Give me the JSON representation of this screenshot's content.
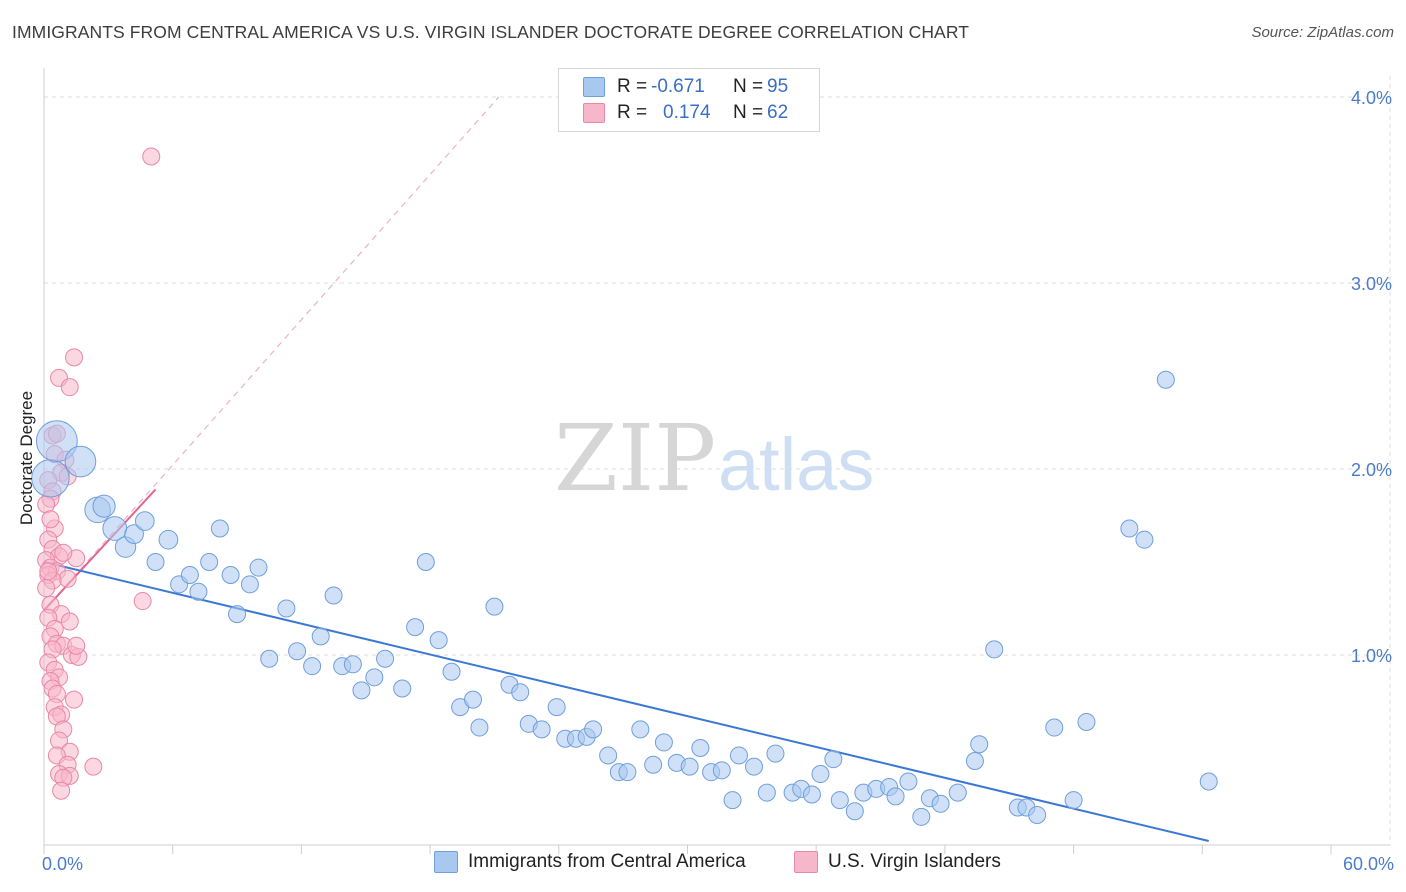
{
  "title": "IMMIGRANTS FROM CENTRAL AMERICA VS U.S. VIRGIN ISLANDER DOCTORATE DEGREE CORRELATION CHART",
  "source": "Source: ZipAtlas.com",
  "watermark": {
    "zip": "ZIP",
    "atlas": "atlas"
  },
  "legend": {
    "rows": [
      {
        "r_label": "R =",
        "r_value": "-0.671",
        "n_label": "N =",
        "n_value": "95"
      },
      {
        "r_label": "R =",
        "r_value": "0.174",
        "n_label": "N =",
        "n_value": "62"
      }
    ]
  },
  "bottom_legend": {
    "series1": "Immigrants from Central America",
    "series2": "U.S. Virgin Islanders"
  },
  "colors": {
    "blue_fill": "#a9c8f0",
    "blue_stroke": "#6f9fdc",
    "blue_line": "#3a78d4",
    "pink_fill": "#f7b7ca",
    "pink_stroke": "#ea88a8",
    "pink_line": "#e5648f",
    "grid": "#dcdcdc",
    "tick_label": "#4a7cc9"
  },
  "chart_data": {
    "type": "scatter",
    "title": "IMMIGRANTS FROM CENTRAL AMERICA VS U.S. VIRGIN ISLANDER DOCTORATE DEGREE CORRELATION CHART",
    "xlabel": "",
    "ylabel": "Doctorate Degree",
    "xlim": [
      0,
      60
    ],
    "ylim": [
      0,
      4.2
    ],
    "x_tick_labels": [
      "0.0%",
      "60.0%"
    ],
    "y_ticks": [
      1,
      2,
      3,
      4
    ],
    "y_tick_labels": [
      "1.0%",
      "2.0%",
      "3.0%",
      "4.0%"
    ],
    "grid": true,
    "legend_position": "top-center",
    "series": [
      {
        "name": "Immigrants from Central America",
        "color": "#a9c8f0",
        "R": -0.671,
        "N": 95,
        "trend": {
          "x": [
            0,
            54.3
          ],
          "y": [
            1.5,
            0.0
          ]
        },
        "points": [
          {
            "x": 0.3,
            "y": 1.95,
            "s": 2.2
          },
          {
            "x": 0.6,
            "y": 2.15,
            "s": 2.4
          },
          {
            "x": 1.7,
            "y": 2.04,
            "s": 1.8
          },
          {
            "x": 2.5,
            "y": 1.78,
            "s": 1.5
          },
          {
            "x": 2.8,
            "y": 1.8,
            "s": 1.3
          },
          {
            "x": 3.3,
            "y": 1.68,
            "s": 1.4
          },
          {
            "x": 3.8,
            "y": 1.58,
            "s": 1.2
          },
          {
            "x": 4.2,
            "y": 1.65,
            "s": 1.1
          },
          {
            "x": 4.7,
            "y": 1.72,
            "s": 1.1
          },
          {
            "x": 5.2,
            "y": 1.5,
            "s": 1.0
          },
          {
            "x": 5.8,
            "y": 1.62,
            "s": 1.1
          },
          {
            "x": 6.3,
            "y": 1.38,
            "s": 1.0
          },
          {
            "x": 6.8,
            "y": 1.43,
            "s": 1.0
          },
          {
            "x": 7.2,
            "y": 1.34,
            "s": 1.0
          },
          {
            "x": 7.7,
            "y": 1.5,
            "s": 1.0
          },
          {
            "x": 8.2,
            "y": 1.68,
            "s": 1.0
          },
          {
            "x": 8.7,
            "y": 1.43,
            "s": 1.0
          },
          {
            "x": 9.0,
            "y": 1.22,
            "s": 1.0
          },
          {
            "x": 9.6,
            "y": 1.38,
            "s": 1.0
          },
          {
            "x": 10.0,
            "y": 1.47,
            "s": 1.0
          },
          {
            "x": 10.5,
            "y": 0.98,
            "s": 1.0
          },
          {
            "x": 11.3,
            "y": 1.25,
            "s": 1.0
          },
          {
            "x": 11.8,
            "y": 1.02,
            "s": 1.0
          },
          {
            "x": 12.5,
            "y": 0.94,
            "s": 1.0
          },
          {
            "x": 12.9,
            "y": 1.1,
            "s": 1.0
          },
          {
            "x": 13.5,
            "y": 1.32,
            "s": 1.0
          },
          {
            "x": 13.9,
            "y": 0.94,
            "s": 1.0
          },
          {
            "x": 14.4,
            "y": 0.95,
            "s": 1.0
          },
          {
            "x": 14.8,
            "y": 0.81,
            "s": 1.0
          },
          {
            "x": 15.4,
            "y": 0.88,
            "s": 1.0
          },
          {
            "x": 15.9,
            "y": 0.98,
            "s": 1.0
          },
          {
            "x": 16.7,
            "y": 0.82,
            "s": 1.0
          },
          {
            "x": 17.3,
            "y": 1.15,
            "s": 1.0
          },
          {
            "x": 17.8,
            "y": 1.5,
            "s": 1.0
          },
          {
            "x": 18.4,
            "y": 1.08,
            "s": 1.0
          },
          {
            "x": 19.0,
            "y": 0.91,
            "s": 1.0
          },
          {
            "x": 19.4,
            "y": 0.72,
            "s": 1.0
          },
          {
            "x": 20.0,
            "y": 0.76,
            "s": 1.0
          },
          {
            "x": 20.3,
            "y": 0.61,
            "s": 1.0
          },
          {
            "x": 21.0,
            "y": 1.26,
            "s": 1.0
          },
          {
            "x": 21.7,
            "y": 0.84,
            "s": 1.0
          },
          {
            "x": 22.2,
            "y": 0.8,
            "s": 1.0
          },
          {
            "x": 22.6,
            "y": 0.63,
            "s": 1.0
          },
          {
            "x": 23.2,
            "y": 0.6,
            "s": 1.0
          },
          {
            "x": 23.9,
            "y": 0.72,
            "s": 1.0
          },
          {
            "x": 24.3,
            "y": 0.55,
            "s": 1.0
          },
          {
            "x": 24.8,
            "y": 0.55,
            "s": 1.0
          },
          {
            "x": 25.3,
            "y": 0.56,
            "s": 1.0
          },
          {
            "x": 25.6,
            "y": 0.6,
            "s": 1.0
          },
          {
            "x": 26.3,
            "y": 0.46,
            "s": 1.0
          },
          {
            "x": 26.8,
            "y": 0.37,
            "s": 1.0
          },
          {
            "x": 27.2,
            "y": 0.37,
            "s": 1.0
          },
          {
            "x": 27.8,
            "y": 0.6,
            "s": 1.0
          },
          {
            "x": 28.4,
            "y": 0.41,
            "s": 1.0
          },
          {
            "x": 28.9,
            "y": 0.53,
            "s": 1.0
          },
          {
            "x": 29.5,
            "y": 0.42,
            "s": 1.0
          },
          {
            "x": 30.1,
            "y": 0.4,
            "s": 1.0
          },
          {
            "x": 30.6,
            "y": 0.5,
            "s": 1.0
          },
          {
            "x": 31.1,
            "y": 0.37,
            "s": 1.0
          },
          {
            "x": 31.6,
            "y": 0.38,
            "s": 1.0
          },
          {
            "x": 32.1,
            "y": 0.22,
            "s": 1.0
          },
          {
            "x": 32.4,
            "y": 0.46,
            "s": 1.0
          },
          {
            "x": 33.1,
            "y": 0.4,
            "s": 1.0
          },
          {
            "x": 33.7,
            "y": 0.26,
            "s": 1.0
          },
          {
            "x": 34.1,
            "y": 0.47,
            "s": 1.0
          },
          {
            "x": 34.9,
            "y": 0.26,
            "s": 1.0
          },
          {
            "x": 35.3,
            "y": 0.28,
            "s": 1.0
          },
          {
            "x": 35.8,
            "y": 0.25,
            "s": 1.0
          },
          {
            "x": 36.2,
            "y": 0.36,
            "s": 1.0
          },
          {
            "x": 36.8,
            "y": 0.44,
            "s": 1.0
          },
          {
            "x": 37.1,
            "y": 0.22,
            "s": 1.0
          },
          {
            "x": 37.8,
            "y": 0.16,
            "s": 1.0
          },
          {
            "x": 38.2,
            "y": 0.26,
            "s": 1.0
          },
          {
            "x": 38.8,
            "y": 0.28,
            "s": 1.0
          },
          {
            "x": 39.4,
            "y": 0.29,
            "s": 1.0
          },
          {
            "x": 39.7,
            "y": 0.24,
            "s": 1.0
          },
          {
            "x": 40.3,
            "y": 0.32,
            "s": 1.0
          },
          {
            "x": 40.9,
            "y": 0.13,
            "s": 1.0
          },
          {
            "x": 41.3,
            "y": 0.23,
            "s": 1.0
          },
          {
            "x": 41.8,
            "y": 0.2,
            "s": 1.0
          },
          {
            "x": 42.6,
            "y": 0.26,
            "s": 1.0
          },
          {
            "x": 43.4,
            "y": 0.43,
            "s": 1.0
          },
          {
            "x": 43.6,
            "y": 0.52,
            "s": 1.0
          },
          {
            "x": 44.3,
            "y": 1.03,
            "s": 1.0
          },
          {
            "x": 45.4,
            "y": 0.18,
            "s": 1.0
          },
          {
            "x": 45.8,
            "y": 0.18,
            "s": 1.0
          },
          {
            "x": 46.3,
            "y": 0.14,
            "s": 1.0
          },
          {
            "x": 47.1,
            "y": 0.61,
            "s": 1.0
          },
          {
            "x": 48.0,
            "y": 0.22,
            "s": 1.0
          },
          {
            "x": 48.6,
            "y": 0.64,
            "s": 1.0
          },
          {
            "x": 50.6,
            "y": 1.68,
            "s": 1.0
          },
          {
            "x": 51.3,
            "y": 1.62,
            "s": 1.0
          },
          {
            "x": 52.3,
            "y": 2.48,
            "s": 1.0
          },
          {
            "x": 54.3,
            "y": 0.32,
            "s": 1.0
          }
        ]
      },
      {
        "name": "U.S. Virgin Islanders",
        "color": "#f7b7ca",
        "R": 0.174,
        "N": 62,
        "trend": {
          "x": [
            0,
            5.2
          ],
          "y": [
            1.24,
            1.89
          ]
        },
        "trend_extended": {
          "x": [
            0,
            21.2
          ],
          "y": [
            1.24,
            4.0
          ]
        },
        "points": [
          {
            "x": 5.0,
            "y": 3.68,
            "s": 1.0
          },
          {
            "x": 1.4,
            "y": 2.6,
            "s": 1.0
          },
          {
            "x": 0.7,
            "y": 2.49,
            "s": 1.0
          },
          {
            "x": 1.2,
            "y": 2.44,
            "s": 1.0
          },
          {
            "x": 0.4,
            "y": 2.18,
            "s": 1.0
          },
          {
            "x": 0.6,
            "y": 2.19,
            "s": 1.0
          },
          {
            "x": 0.5,
            "y": 2.08,
            "s": 1.0
          },
          {
            "x": 1.0,
            "y": 2.05,
            "s": 1.0
          },
          {
            "x": 0.8,
            "y": 1.98,
            "s": 1.0
          },
          {
            "x": 1.1,
            "y": 1.96,
            "s": 1.0
          },
          {
            "x": 0.2,
            "y": 1.94,
            "s": 1.0
          },
          {
            "x": 0.4,
            "y": 1.88,
            "s": 1.0
          },
          {
            "x": 0.3,
            "y": 1.84,
            "s": 1.0
          },
          {
            "x": 0.1,
            "y": 1.81,
            "s": 1.0
          },
          {
            "x": 0.5,
            "y": 1.68,
            "s": 1.0
          },
          {
            "x": 0.2,
            "y": 1.62,
            "s": 1.0
          },
          {
            "x": 0.4,
            "y": 1.57,
            "s": 1.0
          },
          {
            "x": 0.7,
            "y": 1.53,
            "s": 1.0
          },
          {
            "x": 1.5,
            "y": 1.52,
            "s": 1.0
          },
          {
            "x": 0.1,
            "y": 1.51,
            "s": 1.0
          },
          {
            "x": 0.3,
            "y": 1.47,
            "s": 1.0
          },
          {
            "x": 0.6,
            "y": 1.45,
            "s": 1.0
          },
          {
            "x": 0.2,
            "y": 1.43,
            "s": 1.0
          },
          {
            "x": 1.1,
            "y": 1.41,
            "s": 1.0
          },
          {
            "x": 0.4,
            "y": 1.4,
            "s": 1.0
          },
          {
            "x": 0.1,
            "y": 1.36,
            "s": 1.0
          },
          {
            "x": 4.6,
            "y": 1.29,
            "s": 1.0
          },
          {
            "x": 0.3,
            "y": 1.27,
            "s": 1.0
          },
          {
            "x": 0.8,
            "y": 1.22,
            "s": 1.0
          },
          {
            "x": 0.2,
            "y": 1.2,
            "s": 1.0
          },
          {
            "x": 1.2,
            "y": 1.18,
            "s": 1.0
          },
          {
            "x": 0.5,
            "y": 1.14,
            "s": 1.0
          },
          {
            "x": 0.3,
            "y": 1.1,
            "s": 1.0
          },
          {
            "x": 0.6,
            "y": 1.06,
            "s": 1.0
          },
          {
            "x": 0.9,
            "y": 1.05,
            "s": 1.0
          },
          {
            "x": 0.4,
            "y": 1.03,
            "s": 1.0
          },
          {
            "x": 1.3,
            "y": 1.0,
            "s": 1.0
          },
          {
            "x": 1.6,
            "y": 0.99,
            "s": 1.0
          },
          {
            "x": 0.2,
            "y": 0.96,
            "s": 1.0
          },
          {
            "x": 0.5,
            "y": 0.92,
            "s": 1.0
          },
          {
            "x": 0.7,
            "y": 0.88,
            "s": 1.0
          },
          {
            "x": 0.3,
            "y": 0.86,
            "s": 1.0
          },
          {
            "x": 0.4,
            "y": 0.82,
            "s": 1.0
          },
          {
            "x": 0.6,
            "y": 0.79,
            "s": 1.0
          },
          {
            "x": 1.4,
            "y": 0.76,
            "s": 1.0
          },
          {
            "x": 0.5,
            "y": 0.72,
            "s": 1.0
          },
          {
            "x": 0.8,
            "y": 0.68,
            "s": 1.0
          },
          {
            "x": 0.6,
            "y": 0.67,
            "s": 1.0
          },
          {
            "x": 0.9,
            "y": 0.6,
            "s": 1.0
          },
          {
            "x": 0.7,
            "y": 0.54,
            "s": 1.0
          },
          {
            "x": 1.2,
            "y": 0.48,
            "s": 1.0
          },
          {
            "x": 0.6,
            "y": 0.46,
            "s": 1.0
          },
          {
            "x": 1.1,
            "y": 0.41,
            "s": 1.0
          },
          {
            "x": 2.3,
            "y": 0.4,
            "s": 1.0
          },
          {
            "x": 0.7,
            "y": 0.36,
            "s": 1.0
          },
          {
            "x": 1.2,
            "y": 0.35,
            "s": 1.0
          },
          {
            "x": 0.9,
            "y": 0.34,
            "s": 1.0
          },
          {
            "x": 0.8,
            "y": 0.27,
            "s": 1.0
          },
          {
            "x": 1.5,
            "y": 1.05,
            "s": 1.0
          },
          {
            "x": 0.2,
            "y": 1.45,
            "s": 1.0
          },
          {
            "x": 0.9,
            "y": 1.55,
            "s": 1.0
          },
          {
            "x": 0.3,
            "y": 1.73,
            "s": 1.0
          }
        ]
      }
    ]
  }
}
